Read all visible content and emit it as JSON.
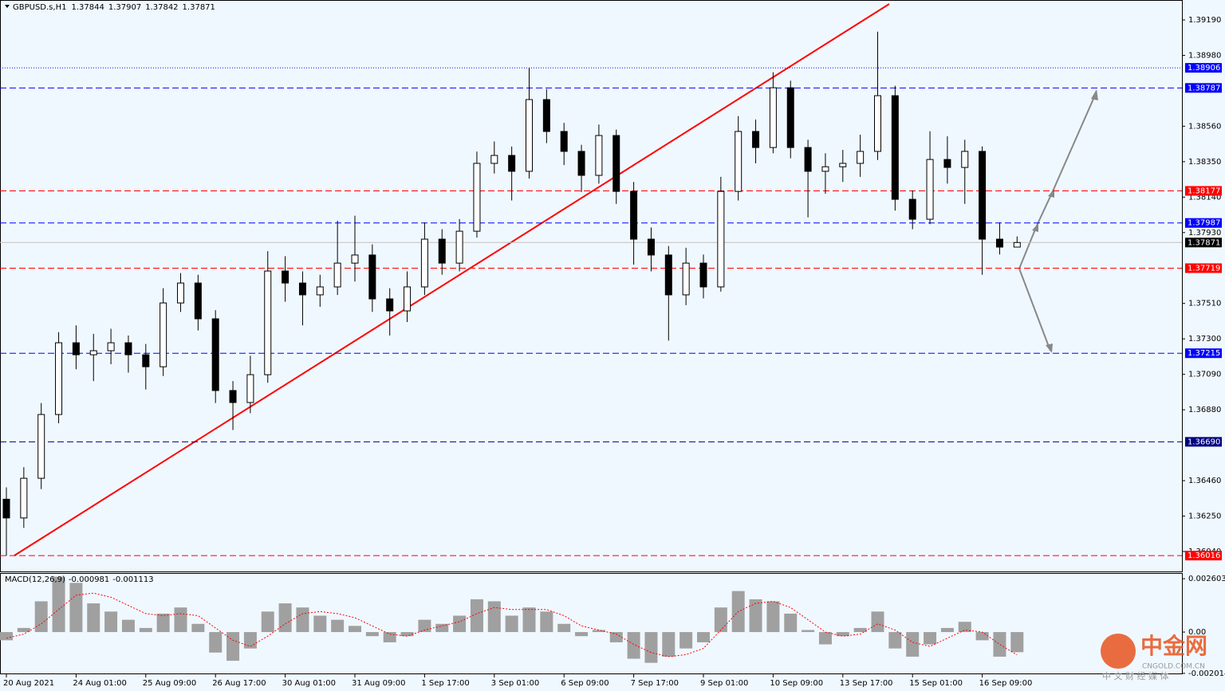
{
  "chart_data": {
    "type": "candlestick",
    "title": "GBPUSD.s,H1",
    "categories": [
      "20 Aug 2021",
      null,
      null,
      null,
      "24 Aug 01:00",
      null,
      null,
      null,
      "25 Aug 09:00",
      null,
      null,
      null,
      "26 Aug 17:00",
      null,
      null,
      null,
      "30 Aug 01:00",
      null,
      null,
      null,
      "31 Aug 09:00",
      null,
      null,
      null,
      "1 Sep 17:00",
      null,
      null,
      null,
      "3 Sep 01:00",
      null,
      null,
      null,
      "6 Sep 09:00",
      null,
      null,
      null,
      "7 Sep 17:00",
      null,
      null,
      null,
      "9 Sep 01:00",
      null,
      null,
      null,
      "10 Sep 09:00",
      null,
      null,
      null,
      "13 Sep 17:00",
      null,
      null,
      null,
      "15 Sep 01:00",
      null,
      null,
      null,
      "16 Sep 09:00",
      null,
      null
    ],
    "open": [
      1.3635,
      1.36239,
      1.36474,
      1.36852,
      1.37277,
      1.37206,
      1.3723,
      1.37277,
      1.37206,
      1.37135,
      1.37513,
      1.37631,
      1.37419,
      1.36994,
      1.36923,
      1.37088,
      1.37702,
      1.37631,
      1.37561,
      1.37608,
      1.37749,
      1.37797,
      1.37537,
      1.37466,
      1.37608,
      1.37891,
      1.37749,
      1.37938,
      1.3834,
      1.38387,
      1.38293,
      1.38718,
      1.38529,
      1.38411,
      1.38269,
      1.38505,
      1.38174,
      1.37891,
      1.37797,
      1.37561,
      1.37749,
      1.37608,
      1.38174,
      1.38529,
      1.38434,
      1.38788,
      1.38434,
      1.38293,
      1.3832,
      1.3834,
      1.38411,
      1.38741,
      1.38127,
      1.38009,
      1.38363,
      1.38316,
      1.38411,
      1.37891,
      1.37844
    ],
    "high": [
      1.3642,
      1.3654,
      1.3692,
      1.3734,
      1.3738,
      1.3733,
      1.3736,
      1.3732,
      1.3727,
      1.376,
      1.3769,
      1.3768,
      1.3747,
      1.3705,
      1.372,
      1.3782,
      1.3779,
      1.377,
      1.3768,
      1.38,
      1.3803,
      1.3786,
      1.376,
      1.377,
      1.3799,
      1.3795,
      1.3801,
      1.3841,
      1.3847,
      1.3844,
      1.38906,
      1.3878,
      1.3858,
      1.3845,
      1.3857,
      1.3854,
      1.3823,
      1.3796,
      1.3785,
      1.3784,
      1.378,
      1.3826,
      1.3862,
      1.386,
      1.3888,
      1.3883,
      1.3848,
      1.384,
      1.3842,
      1.3851,
      1.3912,
      1.388,
      1.3818,
      1.3853,
      1.385,
      1.3848,
      1.3844,
      1.3799,
      1.37907
    ],
    "low": [
      1.36016,
      1.3618,
      1.3641,
      1.368,
      1.3712,
      1.3705,
      1.3715,
      1.371,
      1.37,
      1.3708,
      1.3746,
      1.3735,
      1.3692,
      1.3676,
      1.3686,
      1.3704,
      1.3752,
      1.3738,
      1.3749,
      1.3756,
      1.3764,
      1.3746,
      1.3732,
      1.374,
      1.3756,
      1.3768,
      1.377,
      1.379,
      1.3828,
      1.3812,
      1.3825,
      1.3846,
      1.3833,
      1.3817,
      1.3822,
      1.381,
      1.3774,
      1.377,
      1.3729,
      1.375,
      1.3754,
      1.3758,
      1.3812,
      1.3834,
      1.384,
      1.3837,
      1.3802,
      1.3816,
      1.3823,
      1.3826,
      1.3836,
      1.3806,
      1.3795,
      1.3798,
      1.3822,
      1.381,
      1.3768,
      1.378,
      1.37842
    ],
    "close": [
      1.36239,
      1.36474,
      1.36852,
      1.37277,
      1.37206,
      1.3723,
      1.37277,
      1.37206,
      1.37135,
      1.37513,
      1.37631,
      1.37419,
      1.36994,
      1.36923,
      1.37088,
      1.37702,
      1.37631,
      1.37561,
      1.37608,
      1.37749,
      1.37797,
      1.37537,
      1.37466,
      1.37608,
      1.37891,
      1.37749,
      1.37938,
      1.3834,
      1.38387,
      1.38293,
      1.38718,
      1.38529,
      1.38411,
      1.38269,
      1.38505,
      1.38174,
      1.37891,
      1.37797,
      1.37561,
      1.37749,
      1.37608,
      1.38174,
      1.38529,
      1.38434,
      1.38788,
      1.38434,
      1.38293,
      1.3832,
      1.3834,
      1.38411,
      1.38741,
      1.38127,
      1.38009,
      1.38363,
      1.38316,
      1.38411,
      1.37891,
      1.37844,
      1.37871
    ],
    "ylim": [
      1.35922,
      1.39308
    ],
    "yticks": [
      {
        "value": 1.3919,
        "label": "1.39190"
      },
      {
        "value": 1.3898,
        "label": "1.38980"
      },
      {
        "value": 1.3856,
        "label": "1.38560"
      },
      {
        "value": 1.3835,
        "label": "1.38350"
      },
      {
        "value": 1.3814,
        "label": "1.38140"
      },
      {
        "value": 1.3793,
        "label": "1.37930"
      },
      {
        "value": 1.3751,
        "label": "1.37510"
      },
      {
        "value": 1.373,
        "label": "1.37300"
      },
      {
        "value": 1.3709,
        "label": "1.37090"
      },
      {
        "value": 1.3688,
        "label": "1.36880"
      },
      {
        "value": 1.3646,
        "label": "1.36460"
      },
      {
        "value": 1.3625,
        "label": "1.36250"
      },
      {
        "value": 1.3604,
        "label": "1.36040"
      }
    ],
    "levels": [
      {
        "value": 1.38906,
        "color": "#0000ff",
        "style": "dotted"
      },
      {
        "value": 1.38787,
        "color": "#0000ff",
        "style": "dashed"
      },
      {
        "value": 1.38177,
        "color": "#ff0000",
        "style": "dashed"
      },
      {
        "value": 1.37987,
        "color": "#0000ff",
        "style": "dashed"
      },
      {
        "value": 1.37871,
        "color": "#000000",
        "style": "current"
      },
      {
        "value": 1.37719,
        "color": "#ff0000",
        "style": "dashed"
      },
      {
        "value": 1.37215,
        "color": "#0000ff",
        "style": "dashed"
      },
      {
        "value": 1.3669,
        "label": "1.36690",
        "color": "#000080",
        "style": "dashed"
      },
      {
        "value": 1.36016,
        "color": "#ff0000",
        "style": "dashed"
      }
    ],
    "macd": {
      "label": "MACD(12,26,9)",
      "values": [
        -0.0004,
        0.0002,
        0.0015,
        0.0027,
        0.0024,
        0.0014,
        0.001,
        0.0006,
        0.0002,
        0.0009,
        0.0012,
        0.0004,
        -0.001,
        -0.0014,
        -0.0008,
        0.001,
        0.0014,
        0.0012,
        0.0008,
        0.0006,
        0.0003,
        -0.0002,
        -0.0005,
        -0.0002,
        0.0006,
        0.0004,
        0.0008,
        0.0016,
        0.0015,
        0.0008,
        0.0012,
        0.001,
        0.0004,
        -0.0002,
        0.0001,
        -0.0005,
        -0.0013,
        -0.0015,
        -0.0012,
        -0.0008,
        -0.0005,
        0.0012,
        0.002,
        0.0016,
        0.0015,
        0.0009,
        0.0001,
        -0.0006,
        -0.0002,
        0.0002,
        0.001,
        -0.0008,
        -0.0012,
        -0.0006,
        0.0002,
        0.0005,
        -0.0004,
        -0.0012,
        -0.000981
      ],
      "signal": [
        -0.0003,
        -0.0001,
        0.0004,
        0.0011,
        0.0018,
        0.0019,
        0.0017,
        0.0013,
        0.0009,
        0.0008,
        0.0009,
        0.0008,
        0.0002,
        -0.0004,
        -0.0007,
        -0.0002,
        0.0004,
        0.0009,
        0.001,
        0.0009,
        0.0007,
        0.0003,
        -0.0001,
        -0.0002,
        0.0001,
        0.0003,
        0.0005,
        0.0009,
        0.0012,
        0.0011,
        0.0011,
        0.0011,
        0.0008,
        0.0003,
        0.0001,
        -0.0001,
        -0.0006,
        -0.001,
        -0.0012,
        -0.0011,
        -0.0008,
        0.0001,
        0.001,
        0.0014,
        0.0015,
        0.0012,
        0.0006,
        0.0,
        -0.0002,
        -0.0001,
        0.0004,
        0.0001,
        -0.0005,
        -0.0007,
        -0.0003,
        0.0001,
        0.0,
        -0.0006,
        -0.001113
      ],
      "ylim": [
        -0.00268,
        0.00284
      ],
      "yticks": [
        0.002603,
        {
          "value": 0,
          "label": "0.00"
        },
        -0.002014
      ]
    },
    "watermark": {
      "title": "中金网",
      "url": "CNGOLD.COM.CN",
      "subtitle": "中 文 财 经 媒 体"
    }
  }
}
